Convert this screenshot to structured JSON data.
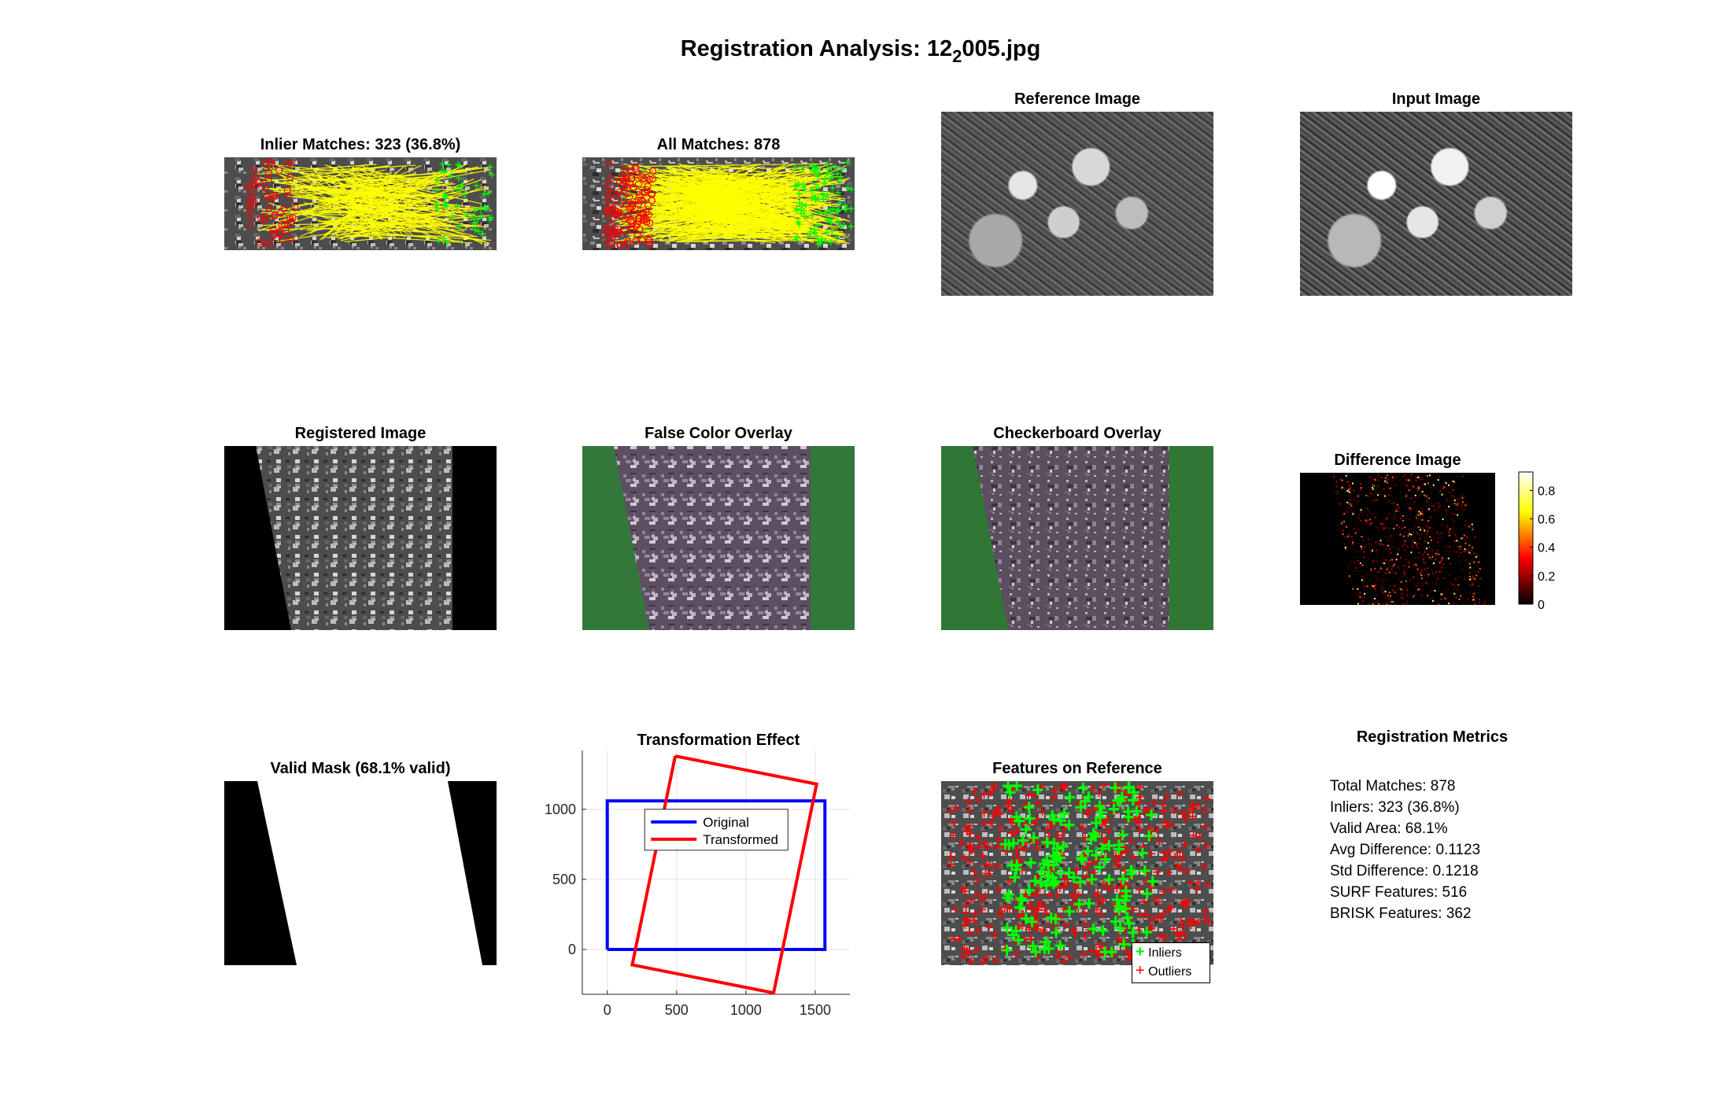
{
  "figure": {
    "title_prefix": "Registration Analysis: 12",
    "title_sub": "2",
    "title_suffix": "005.jpg"
  },
  "panels": {
    "inlier_matches": "Inlier Matches: 323 (36.8%)",
    "all_matches": "All Matches: 878",
    "reference_image": "Reference Image",
    "input_image": "Input Image",
    "registered_image": "Registered Image",
    "false_color": "False Color Overlay",
    "checkerboard": "Checkerboard Overlay",
    "difference": "Difference Image",
    "valid_mask": "Valid Mask (68.1% valid)",
    "transformation": "Transformation Effect",
    "features": "Features on Reference",
    "metrics_title": "Registration Metrics"
  },
  "metrics": [
    "Total Matches: 878",
    "Inliers: 323 (36.8%)",
    "Valid Area: 68.1%",
    "Avg Difference: 0.1123",
    "Std Difference: 0.1218",
    "SURF Features: 516",
    "BRISK Features: 362"
  ],
  "colorbar": {
    "ticks": [
      "0",
      "0.2",
      "0.4",
      "0.6",
      "0.8"
    ],
    "tick_values": [
      0,
      0.2,
      0.4,
      0.6,
      0.8
    ],
    "range": [
      0,
      0.93
    ],
    "colormap": "hot"
  },
  "features_legend": {
    "inliers": "Inliers",
    "outliers": "Outliers"
  },
  "chart_data": {
    "type": "line",
    "title": "Transformation Effect",
    "xlabel": "",
    "ylabel": "",
    "xlim": [
      -180,
      1750
    ],
    "ylim": [
      -320,
      1420
    ],
    "xticks": [
      0,
      500,
      1000,
      1500
    ],
    "yticks": [
      0,
      500,
      1000
    ],
    "grid": true,
    "legend_position": "inside-top",
    "series": [
      {
        "name": "Original",
        "color": "#0000ff",
        "x": [
          0,
          1570,
          1570,
          0,
          0
        ],
        "y": [
          0,
          0,
          1060,
          1060,
          0
        ]
      },
      {
        "name": "Transformed",
        "color": "#ff0000",
        "x": [
          490,
          1510,
          1200,
          180,
          490
        ],
        "y": [
          1380,
          1180,
          -310,
          -110,
          1380
        ]
      }
    ]
  },
  "colors": {
    "match_line": "#ffff00",
    "ref_marker": "#ff0000",
    "input_marker": "#00ff00",
    "original": "#0000ff",
    "transformed": "#ff0000"
  }
}
